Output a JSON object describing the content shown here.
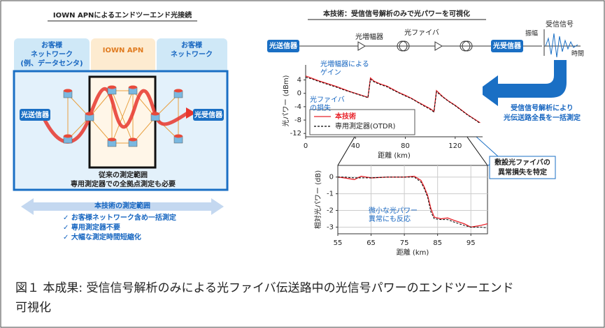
{
  "left_panel": {
    "title": "IOWN APNによるエンドツーエンド光接続",
    "zones": [
      [
        "お客様",
        "ネットワーク",
        "(例、データセンタ)"
      ],
      [
        "IOWN APN"
      ],
      [
        "お客様",
        "ネットワーク"
      ]
    ],
    "transmitter": "光送信器",
    "receiver": "光受信器",
    "conventional": [
      "従来の測定範囲",
      "専用測定器での全拠点測定も必要"
    ],
    "scope_title": "本技術の測定範囲",
    "benefits": [
      "✓ お客様ネットワーク含め一括測定",
      "✓ 専用測定器不要",
      "✓ 大幅な測定時間短縮化"
    ]
  },
  "right_panel": {
    "title": "本技術：受信信号解析のみで光パワーを可視化",
    "transmitter": "光送信器",
    "amplifier": "光増幅器",
    "fiber": "光ファイバ",
    "receiver": "光受信器",
    "signal_title": "受信信号",
    "amplitude": "振幅",
    "time": "時間",
    "analysis": [
      "受信信号解析により",
      "光伝送路全長を一括測定"
    ],
    "anomaly": [
      "敷設光ファイバの",
      "異常損失を特定"
    ]
  },
  "chart_data": [
    {
      "type": "line",
      "x_label": "距離 (km)",
      "y_label": "光パワー (dBm)",
      "xlim": [
        0,
        142
      ],
      "ylim": [
        -13,
        8.5
      ],
      "xticks": [
        0,
        40,
        80,
        120
      ],
      "yticks": [
        4,
        0,
        -4,
        -8,
        -12
      ],
      "grid": false,
      "legend": "lower-left",
      "x": [
        0,
        5,
        10,
        15,
        20,
        25,
        30,
        35,
        40,
        45,
        50,
        52,
        55,
        60,
        65,
        70,
        75,
        80,
        85,
        90,
        95,
        100,
        103,
        105,
        110,
        115,
        120,
        125,
        130,
        135,
        140
      ],
      "series": [
        {
          "name": "本技術",
          "color": "#e8232a",
          "line_style": "solid",
          "values": [
            5.2,
            4.5,
            3.8,
            3.2,
            2.6,
            2.0,
            1.3,
            0.6,
            0,
            -0.6,
            -1.2,
            4.6,
            3.6,
            2.8,
            2.2,
            1.2,
            0.2,
            -0.6,
            -1.5,
            -2.6,
            -3.6,
            -4.6,
            -5.4,
            0.8,
            -1,
            -2.4,
            -3.6,
            -5,
            -6.4,
            -7.6,
            -8.8
          ]
        },
        {
          "name": "専用測定器(OTDR)",
          "color": "#000000",
          "line_style": "dashed",
          "values": [
            4.8,
            4.3,
            3.6,
            3.0,
            2.4,
            1.8,
            1.1,
            0.5,
            -0.1,
            -0.7,
            -1.3,
            4.2,
            3.4,
            2.6,
            2.0,
            1.0,
            0.1,
            -0.8,
            -1.6,
            -2.7,
            -3.8,
            -4.8,
            -5.6,
            0.5,
            -1.1,
            -2.5,
            -3.7,
            -5.1,
            -6.5,
            -7.7,
            -9.0
          ]
        }
      ],
      "annotations": [
        [
          "光増幅器による",
          "ゲイン"
        ],
        [
          "光ファイバ",
          "の損失"
        ]
      ]
    },
    {
      "type": "line",
      "x_label": "距離 (km)",
      "y_label": "相対光パワー (dB)",
      "xlim": [
        55,
        100
      ],
      "ylim": [
        -3.4,
        0.7
      ],
      "xticks": [
        55,
        65,
        75,
        85,
        95
      ],
      "yticks": [
        0,
        -1,
        -2,
        -3
      ],
      "grid": true,
      "x": [
        55,
        57,
        60,
        62,
        65,
        70,
        75,
        78,
        80,
        81,
        82,
        83,
        84,
        86,
        88,
        90,
        93,
        95,
        98,
        100
      ],
      "series": [
        {
          "color": "#e8232a",
          "line_style": "solid",
          "values": [
            0,
            -0.05,
            -0.15,
            0.05,
            -0.05,
            0,
            0,
            0.05,
            -0.2,
            -0.6,
            -1.1,
            -1.9,
            -2.4,
            -2.5,
            -2.45,
            -2.6,
            -2.8,
            -3.0,
            -2.9,
            -2.8
          ]
        },
        {
          "color": "#000000",
          "line_style": "dashed",
          "values": [
            0,
            0,
            -0.05,
            -0.05,
            -0.05,
            0,
            0,
            0,
            -0.3,
            -0.7,
            -1.2,
            -2.1,
            -2.5,
            -2.55,
            -2.55,
            -2.7,
            -2.9,
            -3.0,
            -3.0,
            -3.05
          ]
        }
      ],
      "annotations": [
        [
          "微小な光パワー",
          "異常にも反応"
        ]
      ]
    }
  ],
  "caption": [
    "図１ 本成果: 受信信号解析のみによる光ファイバ伝送路中の光信号パワーのエンドツーエンド",
    "可視化"
  ]
}
